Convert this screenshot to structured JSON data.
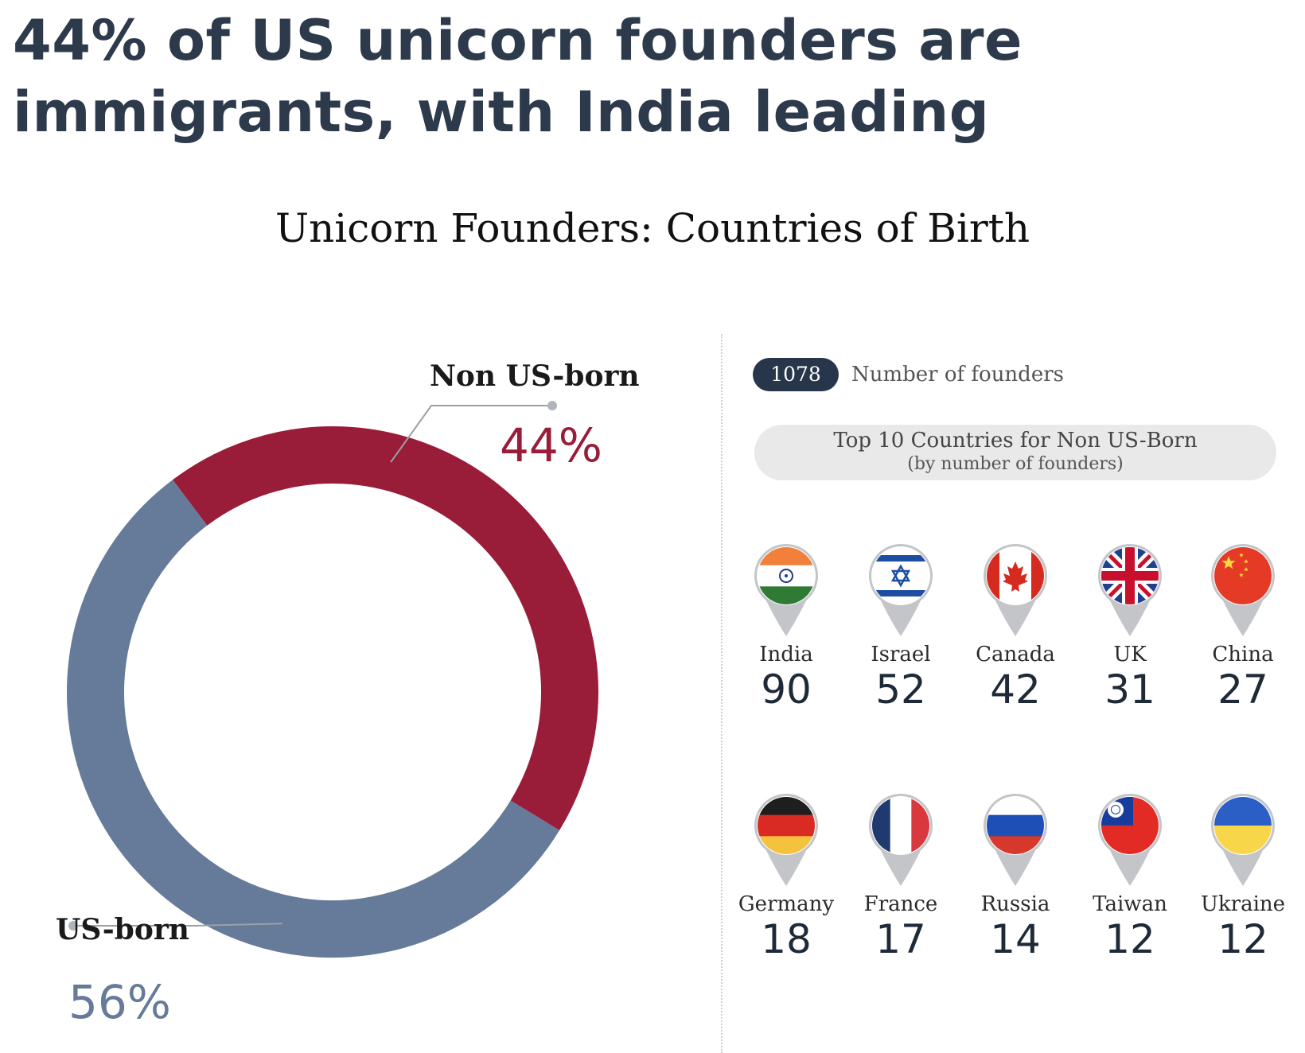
{
  "headline": "44% of US unicorn founders are immigrants, with India leading",
  "chart_data": [
    {
      "type": "pie",
      "title": "Unicorn Founders: Countries of Birth",
      "style": "donut",
      "slices": [
        {
          "label": "Non US-born",
          "value": 44,
          "display": "44%",
          "color": "#991d38"
        },
        {
          "label": "US-born",
          "value": 56,
          "display": "56%",
          "color": "#667a99"
        }
      ]
    },
    {
      "type": "table",
      "total": {
        "value": "1078",
        "label": "Number of founders"
      },
      "title": "Top 10 Countries for Non US-Born",
      "subtitle": "(by number of founders)",
      "countries": [
        {
          "name": "India",
          "count": 90,
          "flag": "india-flag"
        },
        {
          "name": "Israel",
          "count": 52,
          "flag": "israel-flag"
        },
        {
          "name": "Canada",
          "count": 42,
          "flag": "canada-flag"
        },
        {
          "name": "UK",
          "count": 31,
          "flag": "uk-flag"
        },
        {
          "name": "China",
          "count": 27,
          "flag": "china-flag"
        },
        {
          "name": "Germany",
          "count": 18,
          "flag": "germany-flag"
        },
        {
          "name": "France",
          "count": 17,
          "flag": "france-flag"
        },
        {
          "name": "Russia",
          "count": 14,
          "flag": "russia-flag"
        },
        {
          "name": "Taiwan",
          "count": 12,
          "flag": "taiwan-flag"
        },
        {
          "name": "Ukraine",
          "count": 12,
          "flag": "ukraine-flag"
        }
      ]
    }
  ]
}
